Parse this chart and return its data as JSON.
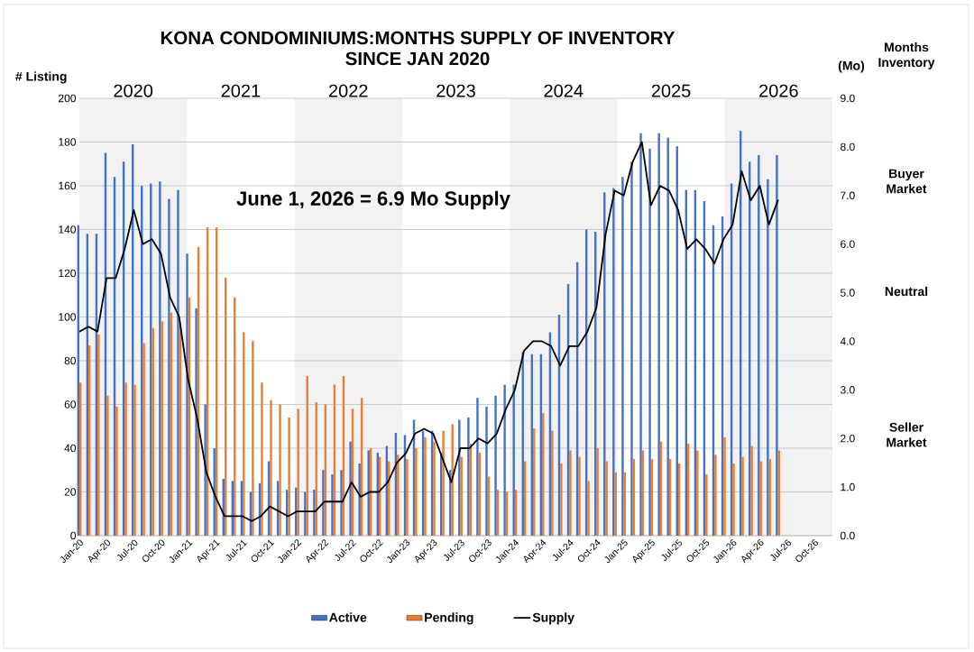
{
  "chart_data": {
    "type": "bar",
    "title": "KONA CONDOMINIUMS:MONTHS SUPPLY OF INVENTORY",
    "subtitle": "SINCE JAN 2020",
    "ylabel": "# Listing",
    "y2label": "(Mo)",
    "x": [
      "2020-01",
      "2020-02",
      "2020-03",
      "2020-04",
      "2020-05",
      "2020-06",
      "2020-07",
      "2020-08",
      "2020-09",
      "2020-10",
      "2020-11",
      "2020-12",
      "2021-01",
      "2021-02",
      "2021-03",
      "2021-04",
      "2021-05",
      "2021-06",
      "2021-07",
      "2021-08",
      "2021-09",
      "2021-10",
      "2021-11",
      "2021-12",
      "2022-01",
      "2022-02",
      "2022-03",
      "2022-04",
      "2022-05",
      "2022-06",
      "2022-07",
      "2022-08",
      "2022-09",
      "2022-10",
      "2022-11",
      "2022-12",
      "2023-01",
      "2023-02",
      "2023-03",
      "2023-04",
      "2023-05",
      "2023-06",
      "2023-07",
      "2023-08",
      "2023-09",
      "2023-10",
      "2023-11",
      "2023-12",
      "2024-01",
      "2024-02",
      "2024-03",
      "2024-04",
      "2024-05",
      "2024-06",
      "2024-07",
      "2024-08",
      "2024-09",
      "2024-10",
      "2024-11",
      "2024-12",
      "2025-01",
      "2025-02",
      "2025-03",
      "2025-04",
      "2025-05",
      "2025-06",
      "2025-07",
      "2025-08",
      "2025-09",
      "2025-10",
      "2025-11",
      "2025-12",
      "2026-01",
      "2026-02",
      "2026-03",
      "2026-04",
      "2026-05",
      "2026-06"
    ],
    "series": [
      {
        "name": "Active",
        "color": "#4472c4",
        "values": [
          142,
          138,
          138,
          175,
          164,
          171,
          179,
          160,
          161,
          162,
          154,
          158,
          129,
          104,
          60,
          40,
          26,
          25,
          25,
          20,
          24,
          34,
          25,
          21,
          22,
          20,
          21,
          30,
          28,
          30,
          43,
          33,
          39,
          38,
          41,
          47,
          46,
          53,
          48,
          48,
          38,
          30,
          53,
          54,
          63,
          59,
          64,
          69,
          69,
          84,
          83,
          83,
          93,
          101,
          115,
          125,
          140,
          139,
          157,
          159,
          164,
          171,
          184,
          177,
          184,
          182,
          178,
          158,
          158,
          153,
          142,
          146,
          161,
          185,
          171,
          174,
          163,
          174
        ]
      },
      {
        "name": "Pending",
        "color": "#ed7d31",
        "values": [
          70,
          87,
          92,
          64,
          59,
          70,
          69,
          88,
          95,
          98,
          102,
          97,
          109,
          132,
          141,
          141,
          118,
          109,
          93,
          89,
          70,
          62,
          60,
          54,
          58,
          73,
          61,
          60,
          69,
          73,
          58,
          63,
          40,
          36,
          34,
          37,
          35,
          40,
          45,
          43,
          48,
          51,
          36,
          42,
          38,
          27,
          21,
          20,
          21,
          34,
          49,
          56,
          48,
          33,
          39,
          36,
          25,
          40,
          34,
          29,
          29,
          35,
          39,
          35,
          43,
          35,
          33,
          42,
          39,
          28,
          37,
          45,
          33,
          36,
          41,
          34,
          35,
          39
        ]
      },
      {
        "name": "Supply",
        "type": "line",
        "color": "#000000",
        "axis": "y2",
        "values": [
          4.2,
          4.3,
          4.2,
          5.3,
          5.3,
          5.9,
          6.7,
          6.0,
          6.1,
          5.8,
          4.9,
          4.5,
          3.2,
          2.4,
          1.3,
          0.8,
          0.4,
          0.4,
          0.4,
          0.3,
          0.4,
          0.6,
          0.5,
          0.4,
          0.5,
          0.5,
          0.5,
          0.7,
          0.7,
          0.7,
          1.1,
          0.8,
          0.9,
          0.9,
          1.1,
          1.5,
          1.7,
          2.1,
          2.2,
          2.1,
          1.6,
          1.1,
          1.8,
          1.8,
          2.0,
          1.9,
          2.1,
          2.6,
          3.0,
          3.8,
          4.0,
          4.0,
          3.9,
          3.5,
          3.9,
          3.9,
          4.2,
          4.7,
          6.2,
          7.1,
          7.0,
          7.7,
          8.1,
          6.8,
          7.2,
          7.1,
          6.7,
          5.9,
          6.1,
          5.9,
          5.6,
          6.1,
          6.4,
          7.5,
          6.9,
          7.2,
          6.4,
          6.9
        ]
      }
    ],
    "xlim": [
      "2020-01",
      "2026-12"
    ],
    "xticks": [
      {
        "value": "2020-01",
        "label": "Jan-20"
      },
      {
        "value": "2020-04",
        "label": "Apr-20"
      },
      {
        "value": "2020-07",
        "label": "Jul-20"
      },
      {
        "value": "2020-10",
        "label": "Oct-20"
      },
      {
        "value": "2021-01",
        "label": "Jan-21"
      },
      {
        "value": "2021-04",
        "label": "Apr-21"
      },
      {
        "value": "2021-07",
        "label": "Jul-21"
      },
      {
        "value": "2021-10",
        "label": "Oct-21"
      },
      {
        "value": "2022-01",
        "label": "Jan-22"
      },
      {
        "value": "2022-04",
        "label": "Apr-22"
      },
      {
        "value": "2022-07",
        "label": "Jul-22"
      },
      {
        "value": "2022-10",
        "label": "Oct-22"
      },
      {
        "value": "2023-01",
        "label": "Jan-23"
      },
      {
        "value": "2023-04",
        "label": "Apr-23"
      },
      {
        "value": "2023-07",
        "label": "Jul-23"
      },
      {
        "value": "2023-10",
        "label": "Oct-23"
      },
      {
        "value": "2024-01",
        "label": "Jan-24"
      },
      {
        "value": "2024-04",
        "label": "Apr-24"
      },
      {
        "value": "2024-07",
        "label": "Jul-24"
      },
      {
        "value": "2024-10",
        "label": "Oct-24"
      },
      {
        "value": "2025-01",
        "label": "Jan-25"
      },
      {
        "value": "2025-04",
        "label": "Apr-25"
      },
      {
        "value": "2025-07",
        "label": "Jul-25"
      },
      {
        "value": "2025-10",
        "label": "Oct-25"
      },
      {
        "value": "2026-01",
        "label": "Jan-26"
      },
      {
        "value": "2026-04",
        "label": "Apr-26"
      },
      {
        "value": "2026-07",
        "label": "Jul-26"
      },
      {
        "value": "2026-10",
        "label": "Oct-26"
      }
    ],
    "x2lim": [
      "2020-01",
      "2027-01"
    ],
    "x2ticks": [
      {
        "value": "2020-07",
        "label": "2020"
      },
      {
        "value": "2021-07",
        "label": "2021"
      },
      {
        "value": "2022-07",
        "label": "2022"
      },
      {
        "value": "2023-07",
        "label": "2023"
      },
      {
        "value": "2024-07",
        "label": "2024"
      },
      {
        "value": "2025-07",
        "label": "2025"
      },
      {
        "value": "2026-07",
        "label": "2026"
      }
    ],
    "ylim": [
      0,
      200
    ],
    "yticks": [
      0,
      20,
      40,
      60,
      80,
      100,
      120,
      140,
      160,
      180,
      200
    ],
    "y2lim": [
      0,
      9
    ],
    "y2ticks": [
      {
        "value": 0,
        "label": "0.0"
      },
      {
        "value": 1,
        "label": "1.0"
      },
      {
        "value": 2,
        "label": "2.0"
      },
      {
        "value": 3,
        "label": "3.0"
      },
      {
        "value": 4,
        "label": "4.0"
      },
      {
        "value": 5,
        "label": "5.0"
      },
      {
        "value": 6,
        "label": "6.0"
      },
      {
        "value": 7,
        "label": "7.0"
      },
      {
        "value": 8,
        "label": "8.0"
      },
      {
        "value": 9,
        "label": "9.0"
      }
    ],
    "bands": [
      {
        "axis": "x2",
        "from": "2020-01",
        "to": "2021-01",
        "color": "#f2f2f2"
      },
      {
        "axis": "x2",
        "from": "2022-01",
        "to": "2023-01",
        "color": "#f2f2f2"
      },
      {
        "axis": "x2",
        "from": "2024-01",
        "to": "2025-01",
        "color": "#f2f2f2"
      },
      {
        "axis": "x2",
        "from": "2026-01",
        "to": "2027-01",
        "color": "#f2f2f2"
      }
    ],
    "annotations": [
      "June 1, 2026 = 6.9 Mo Supply",
      "Months Inventory",
      "Buyer Market",
      "Neutral",
      "Seller Market"
    ],
    "grid": "y",
    "legend": "bottom"
  }
}
